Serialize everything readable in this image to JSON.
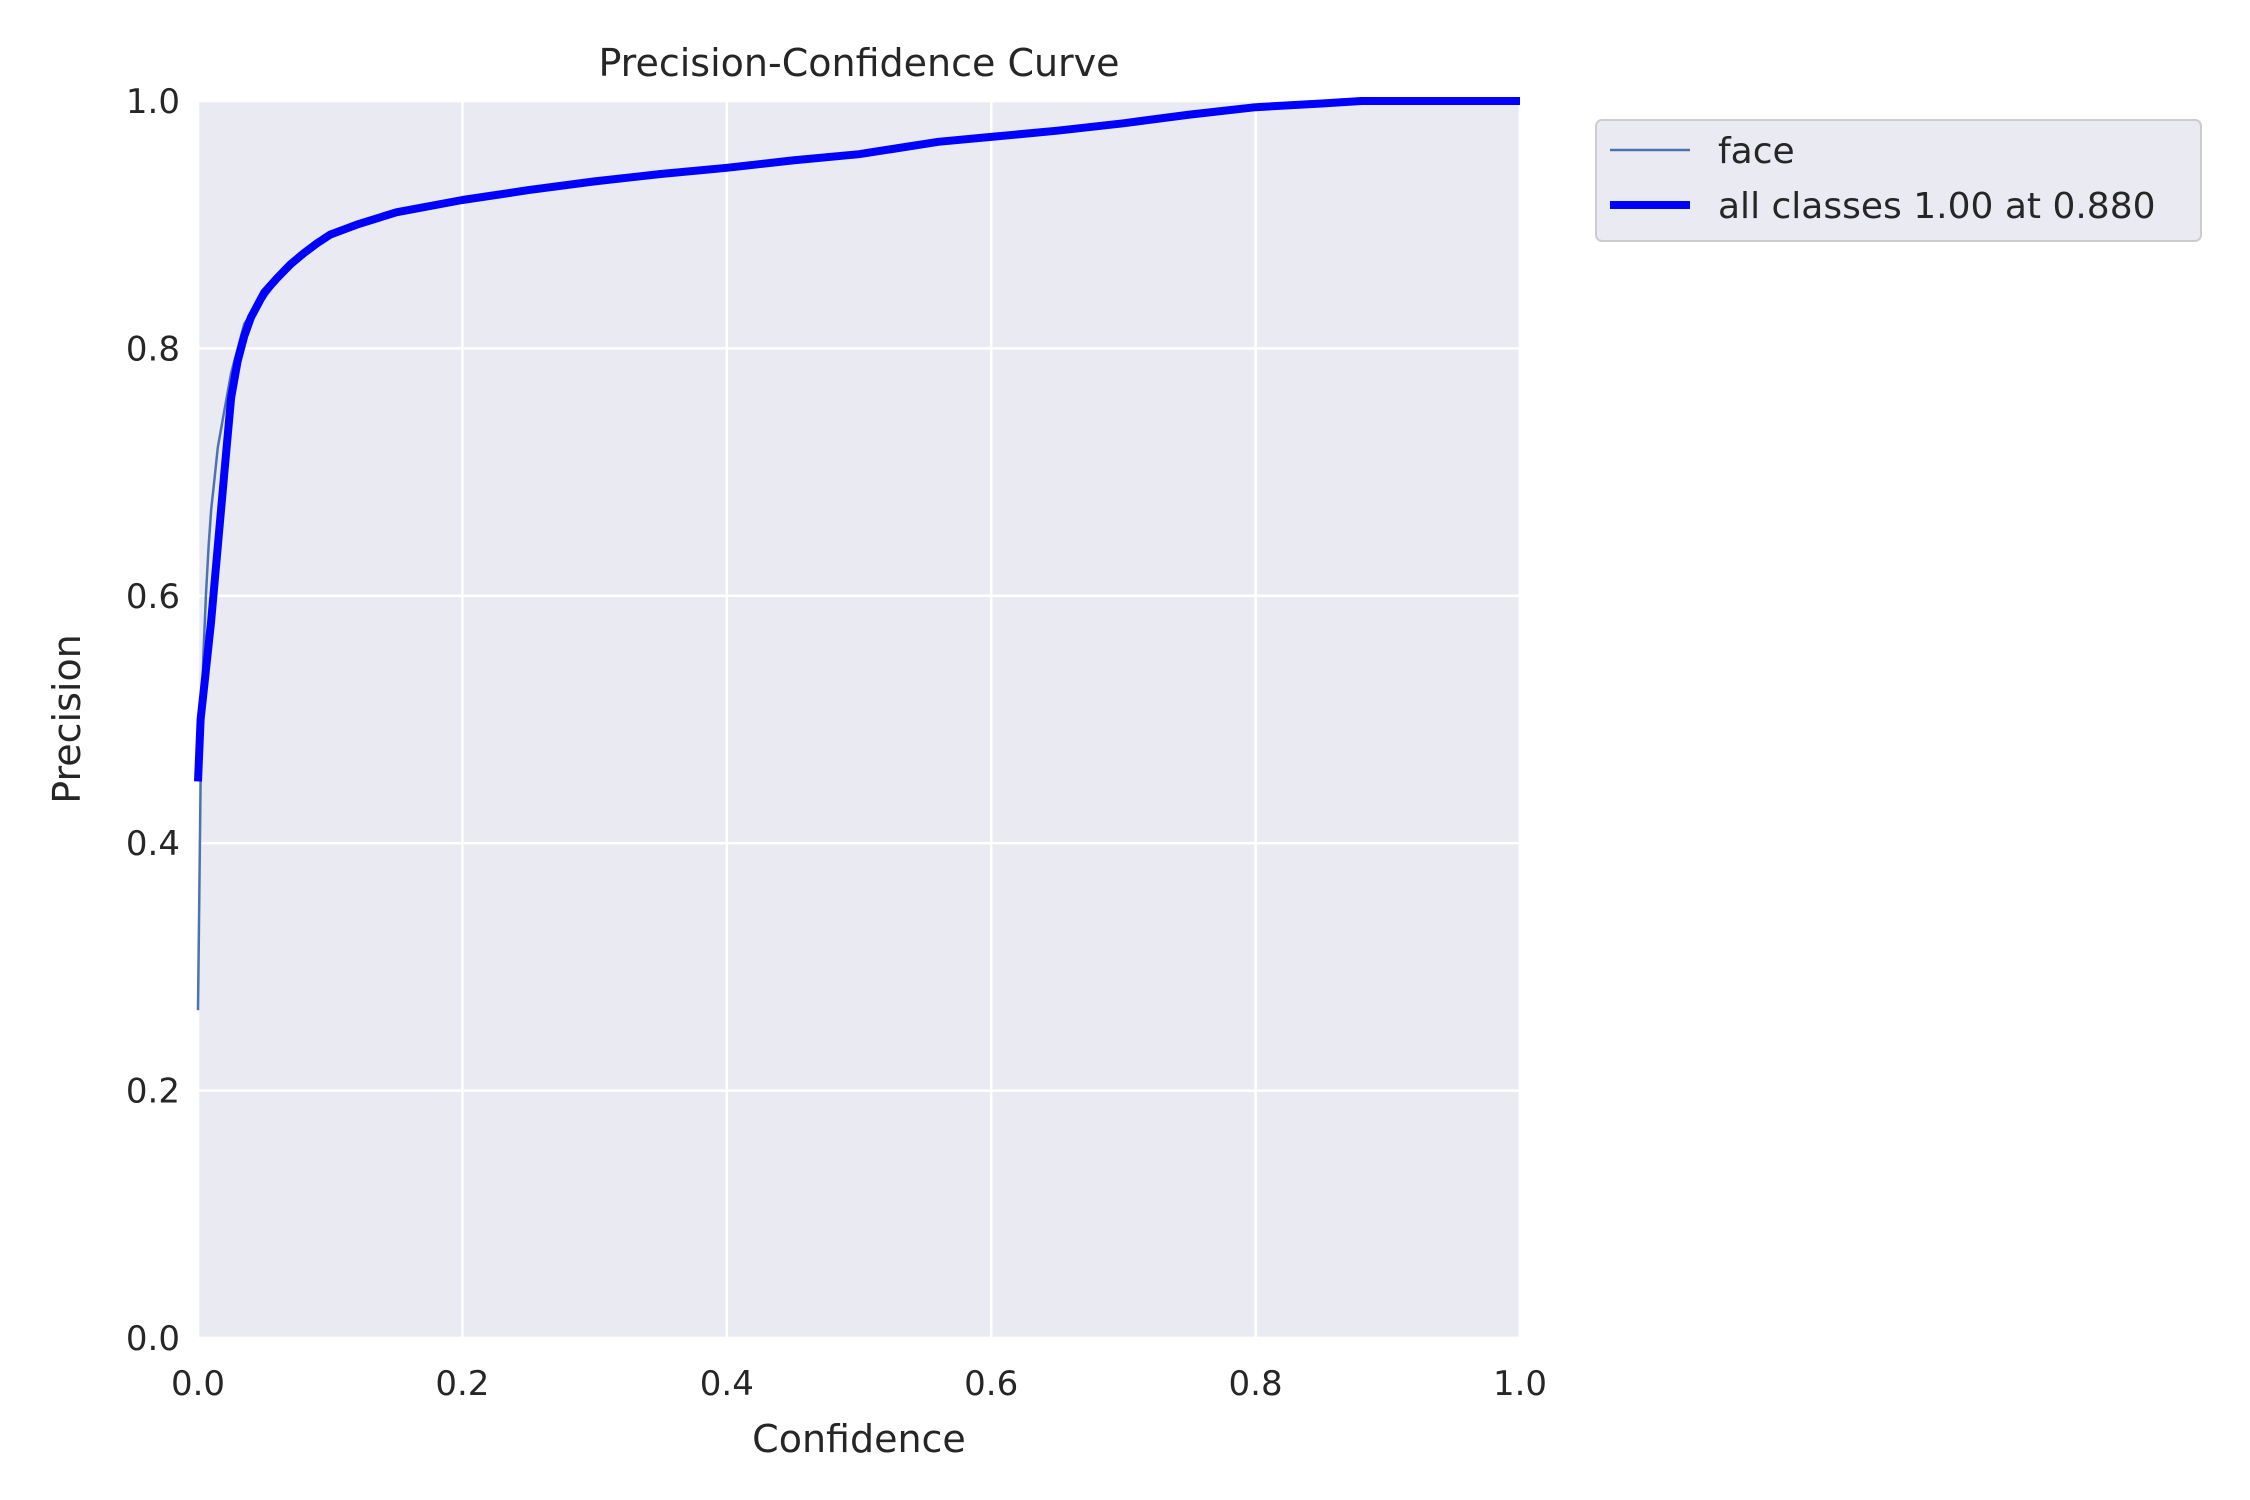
{
  "chart_data": {
    "type": "line",
    "title": "Precision-Confidence Curve",
    "xlabel": "Confidence",
    "ylabel": "Precision",
    "xlim": [
      0.0,
      1.0
    ],
    "ylim": [
      0.0,
      1.0
    ],
    "x_ticks": [
      "0.0",
      "0.2",
      "0.4",
      "0.6",
      "0.8",
      "1.0"
    ],
    "y_ticks": [
      "0.0",
      "0.2",
      "0.4",
      "0.6",
      "0.8",
      "1.0"
    ],
    "grid": true,
    "legend_position": "outside top-right",
    "series": [
      {
        "name": "face",
        "color": "#4c72b0",
        "style": "thin",
        "x": [
          0.0,
          0.002,
          0.004,
          0.006,
          0.008,
          0.01,
          0.012,
          0.015,
          0.02,
          0.025,
          0.03,
          0.035,
          0.04,
          0.045,
          0.05,
          0.06,
          0.07,
          0.08,
          0.1,
          0.12,
          0.15,
          0.2,
          0.25,
          0.3,
          0.35,
          0.4,
          0.45,
          0.5,
          0.53,
          0.56,
          0.6,
          0.65,
          0.7,
          0.75,
          0.8,
          0.85,
          0.88,
          0.9,
          0.95,
          1.0
        ],
        "y": [
          0.265,
          0.45,
          0.55,
          0.6,
          0.64,
          0.67,
          0.69,
          0.72,
          0.75,
          0.78,
          0.8,
          0.82,
          0.828,
          0.835,
          0.84,
          0.855,
          0.866,
          0.876,
          0.89,
          0.9,
          0.91,
          0.92,
          0.93,
          0.937,
          0.942,
          0.946,
          0.951,
          0.956,
          0.96,
          0.965,
          0.97,
          0.976,
          0.983,
          0.99,
          0.996,
          0.999,
          1.0,
          1.0,
          1.0,
          1.0
        ]
      },
      {
        "name": "all classes 1.00 at 0.880",
        "color": "#0000ff",
        "style": "thick",
        "x": [
          0.0,
          0.002,
          0.005,
          0.01,
          0.015,
          0.02,
          0.025,
          0.03,
          0.035,
          0.04,
          0.045,
          0.05,
          0.06,
          0.07,
          0.08,
          0.09,
          0.1,
          0.12,
          0.15,
          0.2,
          0.25,
          0.3,
          0.35,
          0.4,
          0.45,
          0.5,
          0.53,
          0.56,
          0.6,
          0.65,
          0.7,
          0.75,
          0.8,
          0.85,
          0.88,
          0.9,
          0.95,
          1.0
        ],
        "y": [
          0.45,
          0.5,
          0.53,
          0.58,
          0.64,
          0.7,
          0.76,
          0.79,
          0.81,
          0.825,
          0.835,
          0.845,
          0.857,
          0.868,
          0.877,
          0.885,
          0.892,
          0.9,
          0.91,
          0.92,
          0.928,
          0.935,
          0.941,
          0.946,
          0.952,
          0.957,
          0.962,
          0.967,
          0.971,
          0.976,
          0.982,
          0.989,
          0.995,
          0.998,
          1.0,
          1.0,
          1.0,
          1.0
        ]
      }
    ]
  }
}
